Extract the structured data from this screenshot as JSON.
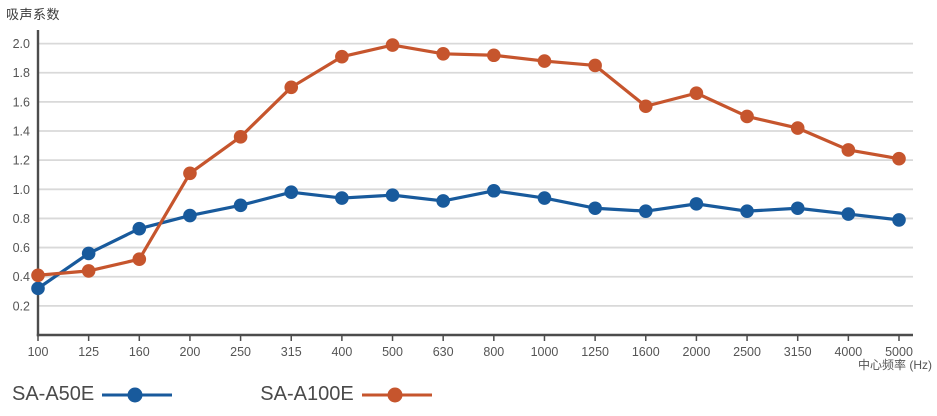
{
  "chart_data": {
    "type": "line",
    "title": "吸声系数",
    "xlabel": "中心频率 (Hz)",
    "ylabel": "吸声系数",
    "categories": [
      "100",
      "125",
      "160",
      "200",
      "250",
      "315",
      "400",
      "500",
      "630",
      "800",
      "1000",
      "1250",
      "1600",
      "2000",
      "2500",
      "3150",
      "4000",
      "5000"
    ],
    "yticks": [
      0.2,
      0.4,
      0.6,
      0.8,
      1.0,
      1.2,
      1.4,
      1.6,
      1.8,
      2.0
    ],
    "ylim": [
      0,
      2.09
    ],
    "grid": "horizontal",
    "legend_position": "bottom-left",
    "colors": {
      "grid": "#d9d9d9",
      "axis": "#4c4c4c",
      "tick_label": "#555555"
    },
    "series": [
      {
        "name": "SA-A50E",
        "color": "#185a9c",
        "values": [
          0.32,
          0.56,
          0.73,
          0.82,
          0.89,
          0.98,
          0.94,
          0.96,
          0.92,
          0.99,
          0.94,
          0.87,
          0.85,
          0.9,
          0.85,
          0.87,
          0.83,
          0.79
        ]
      },
      {
        "name": "SA-A100E",
        "color": "#c6552d",
        "values": [
          0.41,
          0.44,
          0.52,
          1.11,
          1.36,
          1.7,
          1.91,
          1.99,
          1.93,
          1.92,
          1.88,
          1.85,
          1.57,
          1.66,
          1.5,
          1.42,
          1.27,
          1.21
        ]
      }
    ]
  }
}
